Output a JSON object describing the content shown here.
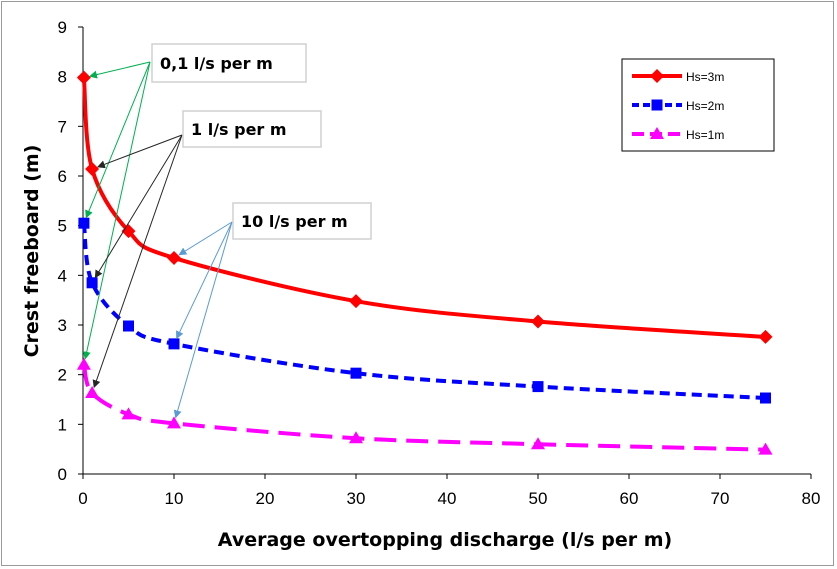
{
  "chart_data": {
    "type": "line",
    "xlabel": "Average overtopping discharge (l/s per m)",
    "ylabel": "Crest freeboard (m)",
    "xlim": [
      0,
      80
    ],
    "ylim": [
      0,
      9
    ],
    "x_ticks": [
      0,
      10,
      20,
      30,
      40,
      50,
      60,
      70,
      80
    ],
    "y_ticks": [
      0,
      1,
      2,
      3,
      4,
      5,
      6,
      7,
      8,
      9
    ],
    "grid": false,
    "legend_position": "top-right",
    "x": [
      0.1,
      1,
      5,
      10,
      30,
      50,
      75
    ],
    "series": [
      {
        "name": "Hs=3m",
        "color": "#ff0000",
        "marker": "diamond",
        "line_style": "solid",
        "values": [
          7.98,
          6.14,
          4.89,
          4.35,
          3.48,
          3.07,
          2.76
        ]
      },
      {
        "name": "Hs=2m",
        "color": "#0000ff",
        "marker": "square",
        "line_style": "dashed",
        "values": [
          5.05,
          3.85,
          2.98,
          2.62,
          2.03,
          1.76,
          1.53
        ]
      },
      {
        "name": "Hs=1m",
        "color": "#ff00ff",
        "marker": "triangle",
        "line_style": "long-dashed",
        "values": [
          2.2,
          1.63,
          1.2,
          1.02,
          0.72,
          0.6,
          0.49
        ]
      }
    ],
    "annotations": [
      {
        "text": "0,1 l/s per m",
        "arrow_color": "#00b050",
        "points_x": 0.1
      },
      {
        "text": "1 l/s per m",
        "arrow_color": "#262626",
        "points_x": 1
      },
      {
        "text": "10 l/s per m",
        "arrow_color": "#5b9bd5",
        "points_x": 10
      }
    ]
  }
}
